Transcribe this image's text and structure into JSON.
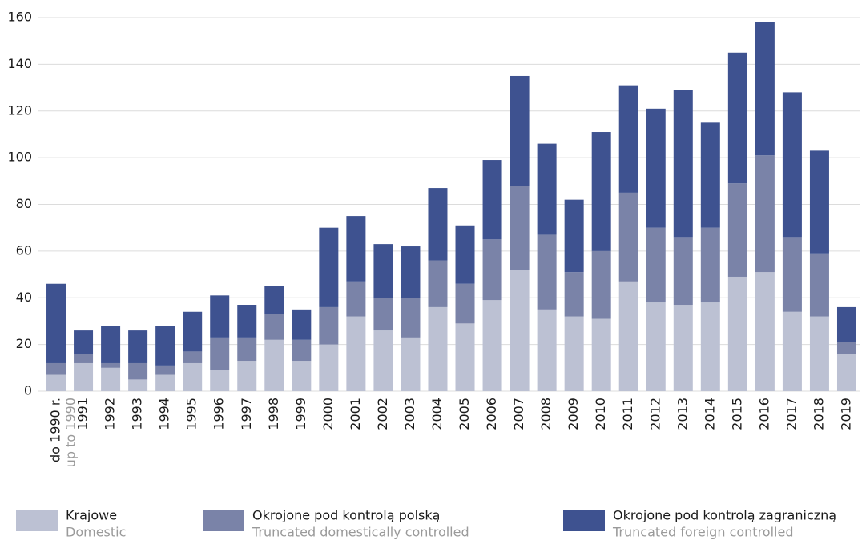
{
  "chart_data": {
    "type": "stacked_bar",
    "categories": [
      [
        "do 1990 r.",
        "up to 1990"
      ],
      "1991",
      "1992",
      "1993",
      "1994",
      "1995",
      "1996",
      "1997",
      "1998",
      "1999",
      "2000",
      "2001",
      "2002",
      "2003",
      "2004",
      "2005",
      "2006",
      "2007",
      "2008",
      "2009",
      "2010",
      "2011",
      "2012",
      "2013",
      "2014",
      "2015",
      "2016",
      "2017",
      "2018",
      "2019"
    ],
    "series": [
      {
        "name": "Krajowe",
        "name_en": "Domestic",
        "color": "#bcc1d3",
        "values": [
          7,
          12,
          10,
          5,
          7,
          12,
          9,
          13,
          22,
          13,
          20,
          32,
          26,
          23,
          36,
          29,
          39,
          52,
          35,
          32,
          31,
          47,
          38,
          37,
          38,
          49,
          51,
          34,
          32,
          16
        ]
      },
      {
        "name": "Okrojone pod kontrolą polską",
        "name_en": "Truncated domestically controlled",
        "color": "#7a83a8",
        "values": [
          5,
          4,
          2,
          7,
          4,
          5,
          14,
          10,
          11,
          9,
          16,
          15,
          14,
          17,
          20,
          17,
          26,
          36,
          32,
          19,
          29,
          38,
          32,
          29,
          32,
          40,
          50,
          32,
          27,
          5
        ]
      },
      {
        "name": "Okrojone pod kontrolą zagraniczną",
        "name_en": "Truncated foreign controlled",
        "color": "#3e5290",
        "values": [
          34,
          10,
          16,
          14,
          17,
          17,
          18,
          14,
          12,
          13,
          34,
          28,
          23,
          22,
          31,
          25,
          34,
          47,
          39,
          31,
          51,
          46,
          51,
          63,
          45,
          56,
          57,
          62,
          44,
          15
        ]
      }
    ],
    "ylim": [
      0,
      160
    ],
    "yticks": [
      0,
      20,
      40,
      60,
      80,
      100,
      120,
      140,
      160
    ],
    "grid": true
  }
}
